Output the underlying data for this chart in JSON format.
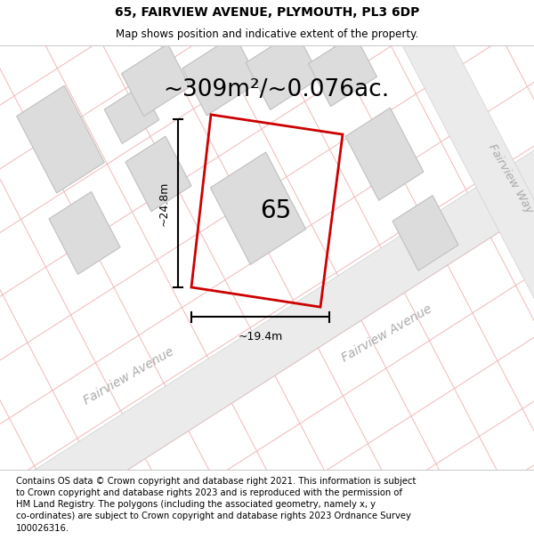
{
  "title": "65, FAIRVIEW AVENUE, PLYMOUTH, PL3 6DP",
  "subtitle": "Map shows position and indicative extent of the property.",
  "footer": "Contains OS data © Crown copyright and database right 2021. This information is subject\nto Crown copyright and database rights 2023 and is reproduced with the permission of\nHM Land Registry. The polygons (including the associated geometry, namely x, y\nco-ordinates) are subject to Crown copyright and database rights 2023 Ordnance Survey\n100026316.",
  "area_label": "~309m²/~0.076ac.",
  "width_label": "~19.4m",
  "height_label": "~24.8m",
  "property_number": "65",
  "bg_color": "#ffffff",
  "map_bg": "#f5f5f5",
  "road_fill": "#ebebeb",
  "building_fill": "#dcdcdc",
  "building_stroke": "#c0c0c0",
  "pink_line": "#f0b8b8",
  "property_outline": "#cc0000",
  "dim_color": "#000000",
  "street_label_color": "#aaaaaa",
  "title_fontsize": 10,
  "subtitle_fontsize": 8.5,
  "footer_fontsize": 7.2,
  "area_fontsize": 19,
  "dim_fontsize": 9,
  "number_fontsize": 20,
  "street_fontsize": 10
}
